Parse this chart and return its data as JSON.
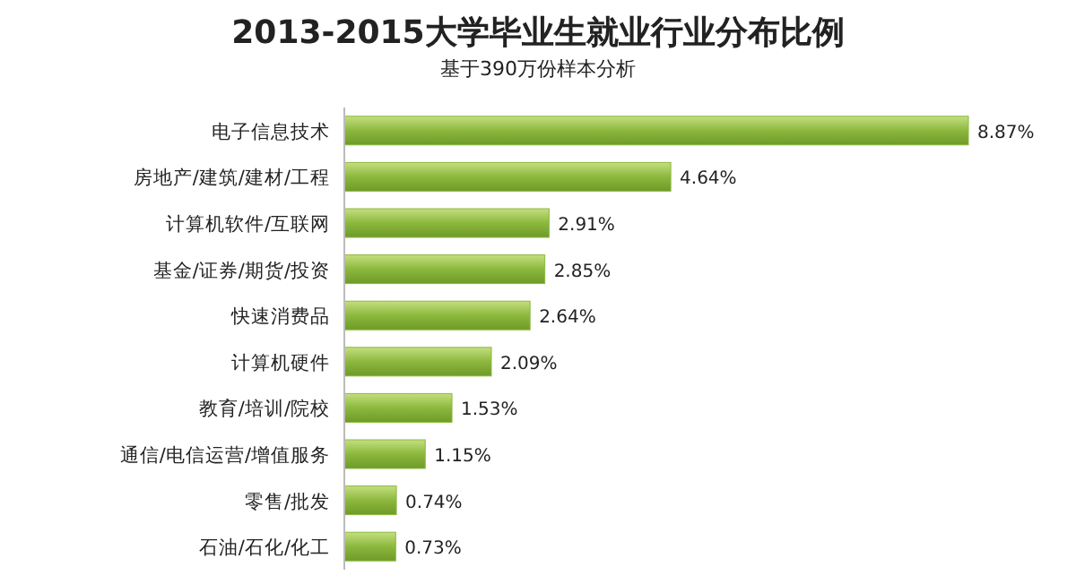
{
  "chart_data": {
    "type": "bar",
    "orientation": "horizontal",
    "title": "2013-2015大学毕业生就业行业分布比例",
    "subtitle": "基于390万份样本分析",
    "categories": [
      "电子信息技术",
      "房地产/建筑/建材/工程",
      "计算机软件/互联网",
      "基金/证券/期货/投资",
      "快速消费品",
      "计算机硬件",
      "教育/培训/院校",
      "通信/电信运营/增值服务",
      "零售/批发",
      "石油/石化/化工"
    ],
    "values": [
      8.87,
      4.64,
      2.91,
      2.85,
      2.64,
      2.09,
      1.53,
      1.15,
      0.74,
      0.73
    ],
    "value_labels": [
      "8.87%",
      "4.64%",
      "2.91%",
      "2.85%",
      "2.64%",
      "2.09%",
      "1.53%",
      "1.15%",
      "0.74%",
      "0.73%"
    ],
    "color": "#8cb83e"
  }
}
